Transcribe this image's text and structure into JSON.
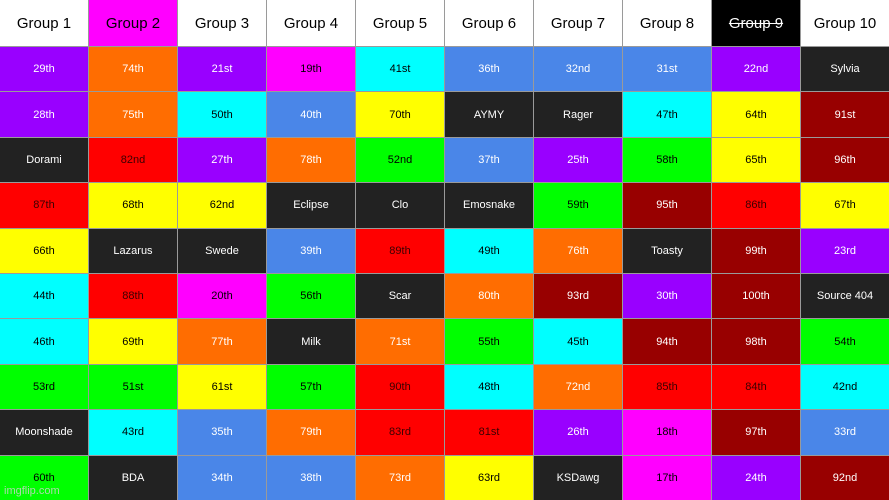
{
  "colors": {
    "purple": "#9900ff",
    "orange": "#ff6d01",
    "magenta": "#ff00ff",
    "cyan": "#00ffff",
    "blue": "#4a86e8",
    "dark": "#222222",
    "yellow": "#ffff00",
    "red": "#ff0000",
    "green": "#00ff00",
    "maroon": "#980000",
    "white": "#ffffff",
    "black": "#000000"
  },
  "headers": [
    {
      "label": "Group 1",
      "bg": "white",
      "strike": false
    },
    {
      "label": "Group 2",
      "bg": "magenta",
      "strike": false
    },
    {
      "label": "Group 3",
      "bg": "white",
      "strike": false
    },
    {
      "label": "Group 4",
      "bg": "white",
      "strike": false
    },
    {
      "label": "Group 5",
      "bg": "white",
      "strike": false
    },
    {
      "label": "Group 6",
      "bg": "white",
      "strike": false
    },
    {
      "label": "Group 7",
      "bg": "white",
      "strike": false
    },
    {
      "label": "Group 8",
      "bg": "white",
      "strike": false
    },
    {
      "label": "Group 9",
      "bg": "black",
      "strike": true
    },
    {
      "label": "Group 10",
      "bg": "white",
      "strike": false
    }
  ],
  "rows": [
    [
      [
        "29th",
        "purple"
      ],
      [
        "74th",
        "orange"
      ],
      [
        "21st",
        "purple"
      ],
      [
        "19th",
        "magenta"
      ],
      [
        "41st",
        "cyan"
      ],
      [
        "36th",
        "blue"
      ],
      [
        "32nd",
        "blue"
      ],
      [
        "31st",
        "blue"
      ],
      [
        "22nd",
        "purple"
      ],
      [
        "Sylvia",
        "dark"
      ]
    ],
    [
      [
        "28th",
        "purple"
      ],
      [
        "75th",
        "orange"
      ],
      [
        "50th",
        "cyan"
      ],
      [
        "40th",
        "blue"
      ],
      [
        "70th",
        "yellow"
      ],
      [
        "AYMY",
        "dark"
      ],
      [
        "Rager",
        "dark"
      ],
      [
        "47th",
        "cyan"
      ],
      [
        "64th",
        "yellow"
      ],
      [
        "91st",
        "maroon"
      ]
    ],
    [
      [
        "Dorami",
        "dark"
      ],
      [
        "82nd",
        "red"
      ],
      [
        "27th",
        "purple"
      ],
      [
        "78th",
        "orange"
      ],
      [
        "52nd",
        "green"
      ],
      [
        "37th",
        "blue"
      ],
      [
        "25th",
        "purple"
      ],
      [
        "58th",
        "green"
      ],
      [
        "65th",
        "yellow"
      ],
      [
        "96th",
        "maroon"
      ]
    ],
    [
      [
        "87th",
        "red"
      ],
      [
        "68th",
        "yellow"
      ],
      [
        "62nd",
        "yellow"
      ],
      [
        "Eclipse",
        "dark"
      ],
      [
        "Clo",
        "dark"
      ],
      [
        "Emosnake",
        "dark"
      ],
      [
        "59th",
        "green"
      ],
      [
        "95th",
        "maroon"
      ],
      [
        "86th",
        "red"
      ],
      [
        "67th",
        "yellow"
      ]
    ],
    [
      [
        "66th",
        "yellow"
      ],
      [
        "Lazarus",
        "dark"
      ],
      [
        "Swede",
        "dark"
      ],
      [
        "39th",
        "blue"
      ],
      [
        "89th",
        "red"
      ],
      [
        "49th",
        "cyan"
      ],
      [
        "76th",
        "orange"
      ],
      [
        "Toasty",
        "dark"
      ],
      [
        "99th",
        "maroon"
      ],
      [
        "23rd",
        "purple"
      ]
    ],
    [
      [
        "44th",
        "cyan"
      ],
      [
        "88th",
        "red"
      ],
      [
        "20th",
        "magenta"
      ],
      [
        "56th",
        "green"
      ],
      [
        "Scar",
        "dark"
      ],
      [
        "80th",
        "orange"
      ],
      [
        "93rd",
        "maroon"
      ],
      [
        "30th",
        "purple"
      ],
      [
        "100th",
        "maroon"
      ],
      [
        "Source 404",
        "dark"
      ]
    ],
    [
      [
        "46th",
        "cyan"
      ],
      [
        "69th",
        "yellow"
      ],
      [
        "77th",
        "orange"
      ],
      [
        "Milk",
        "dark"
      ],
      [
        "71st",
        "orange"
      ],
      [
        "55th",
        "green"
      ],
      [
        "45th",
        "cyan"
      ],
      [
        "94th",
        "maroon"
      ],
      [
        "98th",
        "maroon"
      ],
      [
        "54th",
        "green"
      ]
    ],
    [
      [
        "53rd",
        "green"
      ],
      [
        "51st",
        "green"
      ],
      [
        "61st",
        "yellow"
      ],
      [
        "57th",
        "green"
      ],
      [
        "90th",
        "red"
      ],
      [
        "48th",
        "cyan"
      ],
      [
        "72nd",
        "orange"
      ],
      [
        "85th",
        "red"
      ],
      [
        "84th",
        "red"
      ],
      [
        "42nd",
        "cyan"
      ]
    ],
    [
      [
        "Moonshade",
        "dark"
      ],
      [
        "43rd",
        "cyan"
      ],
      [
        "35th",
        "blue"
      ],
      [
        "79th",
        "orange"
      ],
      [
        "83rd",
        "red"
      ],
      [
        "81st",
        "red"
      ],
      [
        "26th",
        "purple"
      ],
      [
        "18th",
        "magenta"
      ],
      [
        "97th",
        "maroon"
      ],
      [
        "33rd",
        "blue"
      ]
    ],
    [
      [
        "60th",
        "green"
      ],
      [
        "BDA",
        "dark"
      ],
      [
        "34th",
        "blue"
      ],
      [
        "38th",
        "blue"
      ],
      [
        "73rd",
        "orange"
      ],
      [
        "63rd",
        "yellow"
      ],
      [
        "KSDawg",
        "dark"
      ],
      [
        "17th",
        "magenta"
      ],
      [
        "24th",
        "purple"
      ],
      [
        "92nd",
        "maroon"
      ]
    ]
  ],
  "watermark": "imgflip.com"
}
